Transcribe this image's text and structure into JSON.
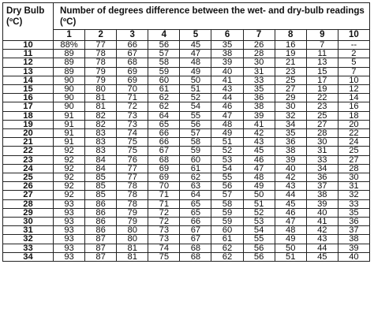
{
  "table": {
    "corner_header": "Dry Bulb (ºC)",
    "top_header": "Number of degrees difference between the wet- and dry-bulb readings (ºC)",
    "columns": [
      "1",
      "2",
      "3",
      "4",
      "5",
      "6",
      "7",
      "8",
      "9",
      "10"
    ],
    "rows": [
      {
        "label": "10",
        "values": [
          "88%",
          "77",
          "66",
          "56",
          "45",
          "35",
          "26",
          "16",
          "7",
          "--"
        ]
      },
      {
        "label": "11",
        "values": [
          "89",
          "78",
          "67",
          "57",
          "47",
          "38",
          "28",
          "19",
          "11",
          "2"
        ]
      },
      {
        "label": "12",
        "values": [
          "89",
          "78",
          "68",
          "58",
          "48",
          "39",
          "30",
          "21",
          "13",
          "5"
        ]
      },
      {
        "label": "13",
        "values": [
          "89",
          "79",
          "69",
          "59",
          "49",
          "40",
          "31",
          "23",
          "15",
          "7"
        ]
      },
      {
        "label": "14",
        "values": [
          "90",
          "79",
          "69",
          "60",
          "50",
          "41",
          "33",
          "25",
          "17",
          "10"
        ]
      },
      {
        "label": "15",
        "values": [
          "90",
          "80",
          "70",
          "61",
          "51",
          "43",
          "35",
          "27",
          "19",
          "12"
        ]
      },
      {
        "label": "16",
        "values": [
          "90",
          "81",
          "71",
          "62",
          "52",
          "44",
          "36",
          "29",
          "22",
          "14"
        ]
      },
      {
        "label": "17",
        "values": [
          "90",
          "81",
          "72",
          "62",
          "54",
          "46",
          "38",
          "30",
          "23",
          "16"
        ]
      },
      {
        "label": "18",
        "values": [
          "91",
          "82",
          "73",
          "64",
          "55",
          "47",
          "39",
          "32",
          "25",
          "18"
        ]
      },
      {
        "label": "19",
        "values": [
          "91",
          "82",
          "73",
          "65",
          "56",
          "48",
          "41",
          "34",
          "27",
          "20"
        ]
      },
      {
        "label": "20",
        "values": [
          "91",
          "83",
          "74",
          "66",
          "57",
          "49",
          "42",
          "35",
          "28",
          "22"
        ]
      },
      {
        "label": "21",
        "values": [
          "91",
          "83",
          "75",
          "66",
          "58",
          "51",
          "43",
          "36",
          "30",
          "24"
        ]
      },
      {
        "label": "22",
        "values": [
          "92",
          "83",
          "75",
          "67",
          "59",
          "52",
          "45",
          "38",
          "31",
          "25"
        ]
      },
      {
        "label": "23",
        "values": [
          "92",
          "84",
          "76",
          "68",
          "60",
          "53",
          "46",
          "39",
          "33",
          "27"
        ]
      },
      {
        "label": "24",
        "values": [
          "92",
          "84",
          "77",
          "69",
          "61",
          "54",
          "47",
          "40",
          "34",
          "28"
        ]
      },
      {
        "label": "25",
        "values": [
          "92",
          "85",
          "77",
          "69",
          "62",
          "55",
          "48",
          "42",
          "36",
          "30"
        ]
      },
      {
        "label": "26",
        "values": [
          "92",
          "85",
          "78",
          "70",
          "63",
          "56",
          "49",
          "43",
          "37",
          "31"
        ]
      },
      {
        "label": "27",
        "values": [
          "92",
          "85",
          "78",
          "71",
          "64",
          "57",
          "50",
          "44",
          "38",
          "32"
        ]
      },
      {
        "label": "28",
        "values": [
          "93",
          "86",
          "78",
          "71",
          "65",
          "58",
          "51",
          "45",
          "39",
          "33"
        ]
      },
      {
        "label": "29",
        "values": [
          "93",
          "86",
          "79",
          "72",
          "65",
          "59",
          "52",
          "46",
          "40",
          "35"
        ]
      },
      {
        "label": "30",
        "values": [
          "93",
          "86",
          "79",
          "72",
          "66",
          "59",
          "53",
          "47",
          "41",
          "36"
        ]
      },
      {
        "label": "31",
        "values": [
          "93",
          "86",
          "80",
          "73",
          "67",
          "60",
          "54",
          "48",
          "42",
          "37"
        ]
      },
      {
        "label": "32",
        "values": [
          "93",
          "87",
          "80",
          "73",
          "67",
          "61",
          "55",
          "49",
          "43",
          "38"
        ]
      },
      {
        "label": "33",
        "values": [
          "93",
          "87",
          "81",
          "74",
          "68",
          "62",
          "56",
          "50",
          "44",
          "39"
        ]
      },
      {
        "label": "34",
        "values": [
          "93",
          "87",
          "81",
          "75",
          "68",
          "62",
          "56",
          "51",
          "45",
          "40"
        ]
      }
    ]
  }
}
